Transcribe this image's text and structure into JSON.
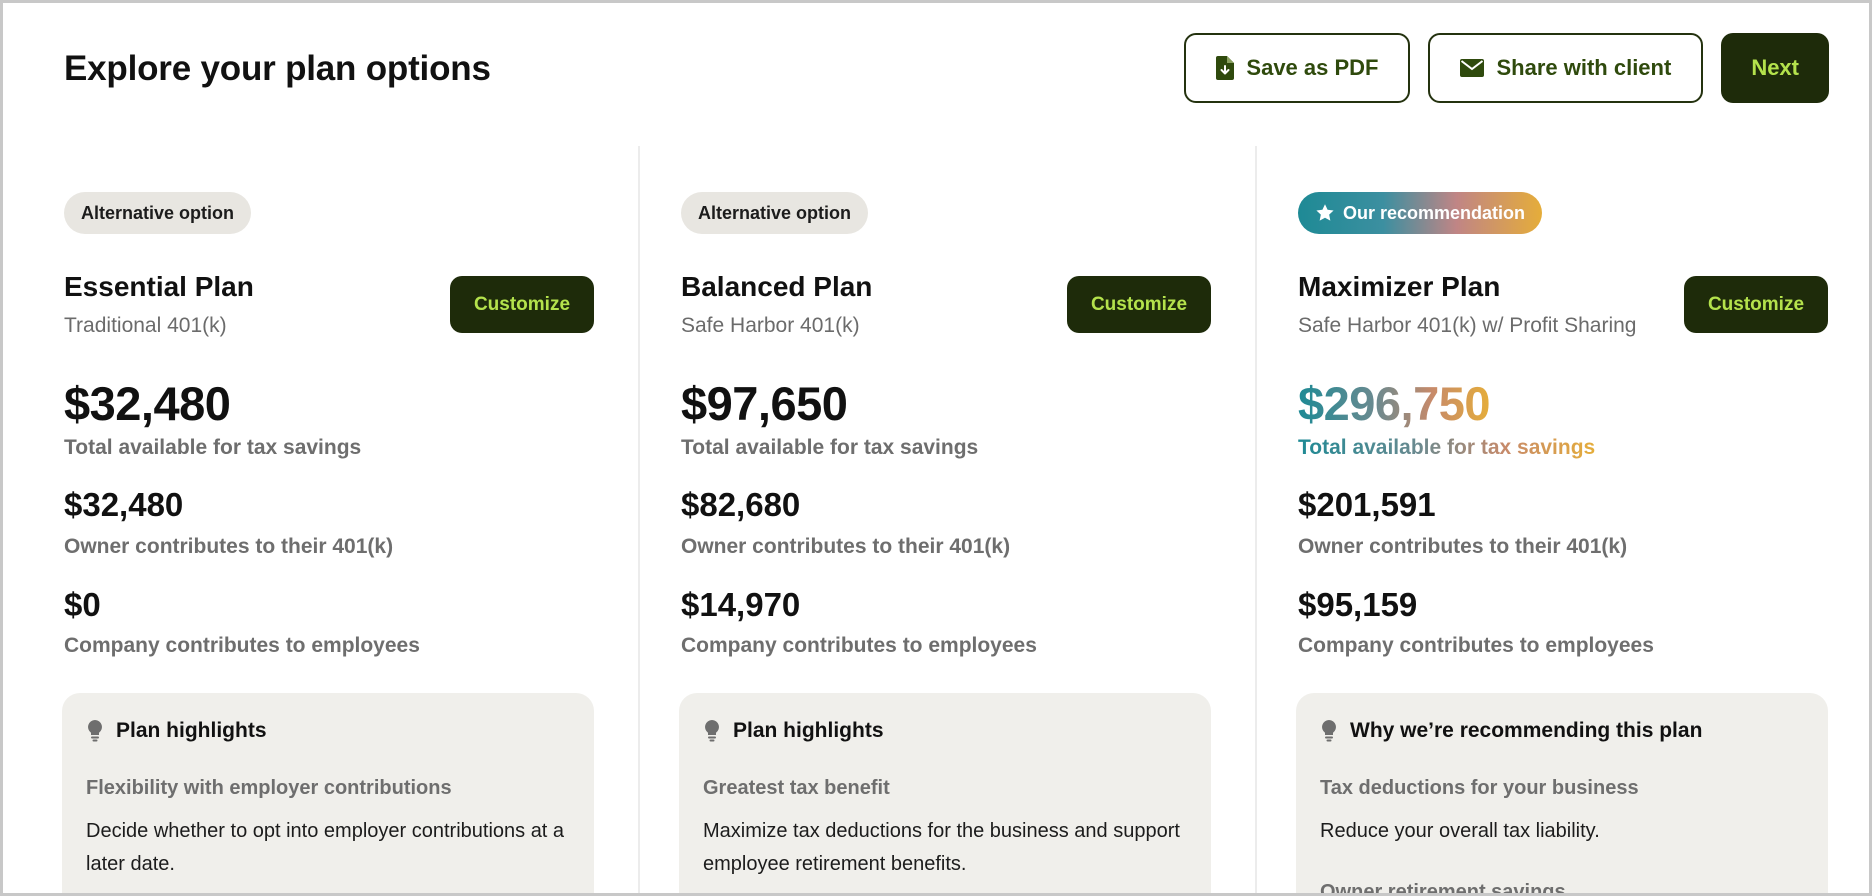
{
  "header": {
    "title": "Explore your plan options",
    "save_pdf_label": "Save as PDF",
    "save_pdf_icon": "file-download-icon",
    "share_label": "Share with client",
    "share_icon": "envelope-icon",
    "next_label": "Next"
  },
  "colors": {
    "dark_green": "#1e2b0a",
    "lime": "#b4e24c",
    "teal": "#1e8a95",
    "gold": "#e5ad3a"
  },
  "plans": [
    {
      "badge": "Alternative option",
      "name": "Essential Plan",
      "type": "Traditional 401(k)",
      "customize_label": "Customize",
      "total": "$32,480",
      "total_label": "Total available for tax savings",
      "owner_amount": "$32,480",
      "owner_label": "Owner contributes to their 401(k)",
      "company_amount": "$0",
      "company_label": "Company contributes to employees",
      "highlights_title": "Plan highlights",
      "highlights_icon": "lightbulb-icon",
      "highlight_subtitle": "Flexibility with employer contributions",
      "highlight_desc": "Decide whether to opt into employer contributions at a later date."
    },
    {
      "badge": "Alternative option",
      "name": "Balanced Plan",
      "type": "Safe Harbor 401(k)",
      "customize_label": "Customize",
      "total": "$97,650",
      "total_label": "Total available for tax savings",
      "owner_amount": "$82,680",
      "owner_label": "Owner contributes to their 401(k)",
      "company_amount": "$14,970",
      "company_label": "Company contributes to employees",
      "highlights_title": "Plan highlights",
      "highlights_icon": "lightbulb-icon",
      "highlight_subtitle": "Greatest tax benefit",
      "highlight_desc": "Maximize tax deductions for the business and support employee retirement benefits."
    },
    {
      "badge": "Our recommendation",
      "badge_icon": "star-icon",
      "name": "Maximizer Plan",
      "type": "Safe Harbor 401(k) w/ Profit Sharing",
      "customize_label": "Customize",
      "total": "$296,750",
      "total_label": "Total available for tax savings",
      "owner_amount": "$201,591",
      "owner_label": "Owner contributes to their 401(k)",
      "company_amount": "$95,159",
      "company_label": "Company contributes to employees",
      "highlights_title": "Why we’re recommending this plan",
      "highlights_icon": "lightbulb-icon",
      "highlight_subtitle": "Tax deductions for your business",
      "highlight_desc": "Reduce your overall tax liability.",
      "highlight_subtitle_2": "Owner retirement savings"
    }
  ]
}
